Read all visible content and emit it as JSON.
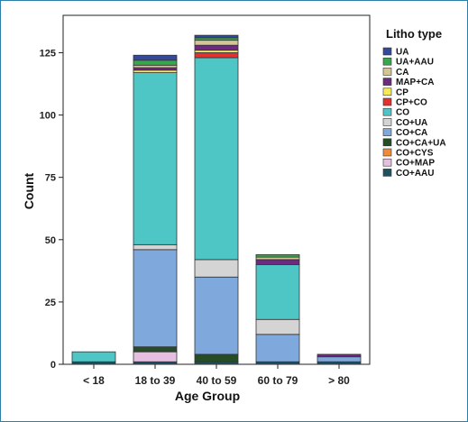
{
  "chart_data": {
    "type": "bar",
    "stacked": true,
    "title": "",
    "xlabel": "Age Group",
    "ylabel": "Count",
    "ylim": [
      0,
      140
    ],
    "yticks": [
      0,
      25,
      50,
      75,
      100,
      125
    ],
    "categories": [
      "< 18",
      "18 to 39",
      "40 to 59",
      "60 to 79",
      "> 80"
    ],
    "legend_title": "Litho type",
    "legend_position": "right",
    "series": [
      {
        "name": "CO+AAU",
        "color": "#23505e",
        "values": [
          1,
          1,
          1,
          1,
          1
        ]
      },
      {
        "name": "CO+MAP",
        "color": "#e6bfe0",
        "values": [
          0,
          4,
          0,
          0,
          0
        ]
      },
      {
        "name": "CO+CYS",
        "color": "#f08a3b",
        "values": [
          0,
          0,
          0,
          0,
          0
        ]
      },
      {
        "name": "CO+CA+UA",
        "color": "#264d26",
        "values": [
          0,
          2,
          3,
          0,
          0
        ]
      },
      {
        "name": "CO+CA",
        "color": "#7fa9dc",
        "values": [
          0,
          39,
          31,
          11,
          2
        ]
      },
      {
        "name": "CO+UA",
        "color": "#d4d4d4",
        "values": [
          0,
          2,
          7,
          6,
          0
        ]
      },
      {
        "name": "CO",
        "color": "#4fc6c6",
        "values": [
          4,
          69,
          81,
          22,
          0
        ]
      },
      {
        "name": "CP+CO",
        "color": "#e3312f",
        "values": [
          0,
          0,
          2,
          0,
          0
        ]
      },
      {
        "name": "CP",
        "color": "#f4ea5a",
        "values": [
          0,
          1,
          1,
          0,
          0
        ]
      },
      {
        "name": "MAP+CA",
        "color": "#6d2a80",
        "values": [
          0,
          1,
          2,
          2,
          1
        ]
      },
      {
        "name": "CA",
        "color": "#d3c596",
        "values": [
          0,
          1,
          2,
          1,
          0
        ]
      },
      {
        "name": "UA+AAU",
        "color": "#37a84a",
        "values": [
          0,
          2,
          1,
          1,
          0
        ]
      },
      {
        "name": "UA",
        "color": "#34499a",
        "values": [
          0,
          2,
          1,
          0,
          0
        ]
      }
    ]
  }
}
